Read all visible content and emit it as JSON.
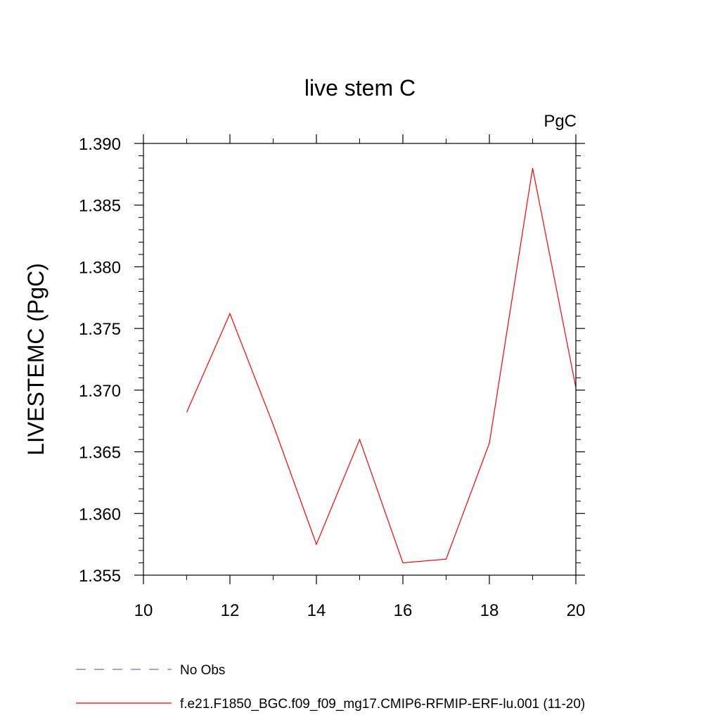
{
  "chart_data": {
    "type": "line",
    "title": "live stem C",
    "units_label": "PgC",
    "ylabel": "LIVESTEMC  (PgC)",
    "xlabel": "",
    "xlim": [
      10,
      20
    ],
    "ylim": [
      1.355,
      1.39
    ],
    "xticks": [
      10,
      12,
      14,
      16,
      18,
      20
    ],
    "yticks": [
      1.355,
      1.36,
      1.365,
      1.37,
      1.375,
      1.38,
      1.385,
      1.39
    ],
    "ytick_labels": [
      "1.355",
      "1.360",
      "1.365",
      "1.370",
      "1.375",
      "1.380",
      "1.385",
      "1.390"
    ],
    "grid": false,
    "legend_position": "bottom-left",
    "series": [
      {
        "name": "No Obs",
        "color": "#7b6fb0",
        "dash": "dashed",
        "x": [],
        "y": []
      },
      {
        "name": "f.e21.F1850_BGC.f09_f09_mg17.CMIP6-RFMIP-ERF-lu.001 (11-20)",
        "color": "#ff0000",
        "dash": "solid",
        "x": [
          11,
          12,
          13,
          14,
          15,
          16,
          17,
          18,
          19,
          20
        ],
        "y": [
          1.3682,
          1.3762,
          1.3672,
          1.3575,
          1.366,
          1.356,
          1.3563,
          1.3657,
          1.388,
          1.3702
        ]
      }
    ]
  }
}
